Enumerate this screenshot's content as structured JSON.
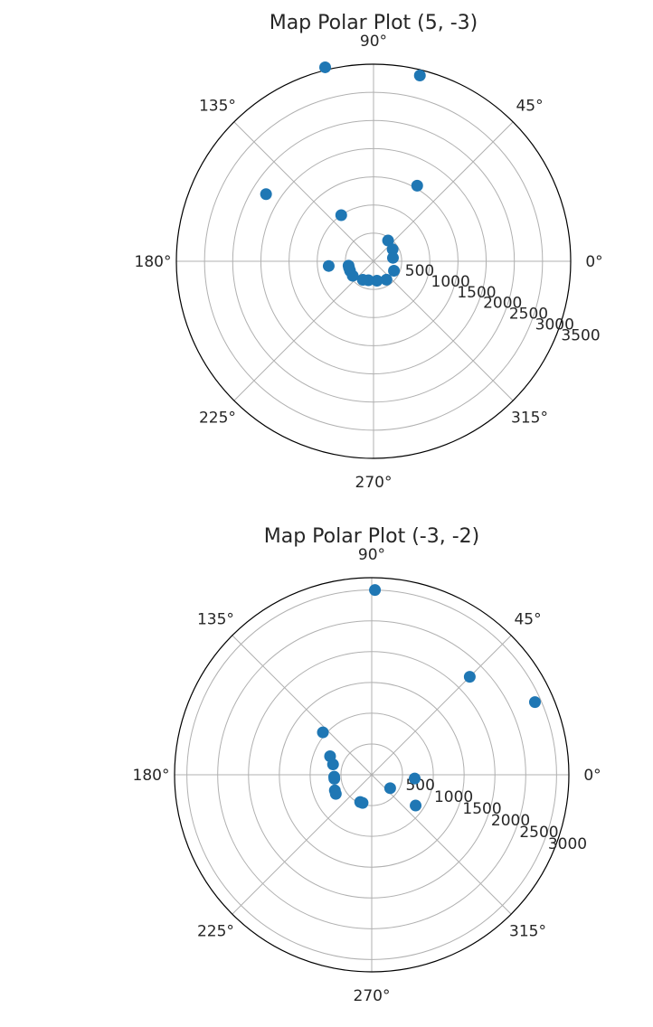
{
  "colors": {
    "point": "#1f77b4"
  },
  "chart_data": [
    {
      "type": "scatter",
      "polar": true,
      "title": "Map Polar Plot (5, -3)",
      "theta_ticks": [
        "0°",
        "45°",
        "90°",
        "135°",
        "180°",
        "225°",
        "270°",
        "315°"
      ],
      "r_ticks": [
        500,
        1000,
        1500,
        2000,
        2500,
        3000,
        3500
      ],
      "r_max": 3500,
      "grid": true,
      "points": [
        {
          "theta": 76,
          "r": 3400
        },
        {
          "theta": 104,
          "r": 3550
        },
        {
          "theta": 60,
          "r": 1550
        },
        {
          "theta": 148,
          "r": 2250
        },
        {
          "theta": 125,
          "r": 1000
        },
        {
          "theta": 186,
          "r": 800
        },
        {
          "theta": 55,
          "r": 450
        },
        {
          "theta": 32,
          "r": 400
        },
        {
          "theta": 10,
          "r": 350
        },
        {
          "theta": -25,
          "r": 400
        },
        {
          "theta": -55,
          "r": 400
        },
        {
          "theta": -80,
          "r": 350
        },
        {
          "theta": -105,
          "r": 350
        },
        {
          "theta": -120,
          "r": 380
        },
        {
          "theta": -145,
          "r": 450
        },
        {
          "theta": -158,
          "r": 450
        },
        {
          "theta": -165,
          "r": 450
        },
        {
          "theta": -170,
          "r": 450
        }
      ]
    },
    {
      "type": "scatter",
      "polar": true,
      "title": "Map Polar Plot (-3, -2)",
      "theta_ticks": [
        "0°",
        "45°",
        "90°",
        "135°",
        "180°",
        "225°",
        "270°",
        "315°"
      ],
      "r_ticks": [
        500,
        1000,
        1500,
        2000,
        2500,
        3000
      ],
      "r_max": 3200,
      "grid": true,
      "points": [
        {
          "theta": 89,
          "r": 3000
        },
        {
          "theta": 45,
          "r": 2250
        },
        {
          "theta": 24,
          "r": 2900
        },
        {
          "theta": 139,
          "r": 1050
        },
        {
          "theta": 156,
          "r": 740
        },
        {
          "theta": 165,
          "r": 650
        },
        {
          "theta": 183,
          "r": 610
        },
        {
          "theta": 186,
          "r": 610
        },
        {
          "theta": 203,
          "r": 650
        },
        {
          "theta": 208,
          "r": 660
        },
        {
          "theta": 247,
          "r": 480
        },
        {
          "theta": 252,
          "r": 480
        },
        {
          "theta": -36,
          "r": 370
        },
        {
          "theta": -35,
          "r": 870
        },
        {
          "theta": -5,
          "r": 700
        }
      ]
    }
  ]
}
